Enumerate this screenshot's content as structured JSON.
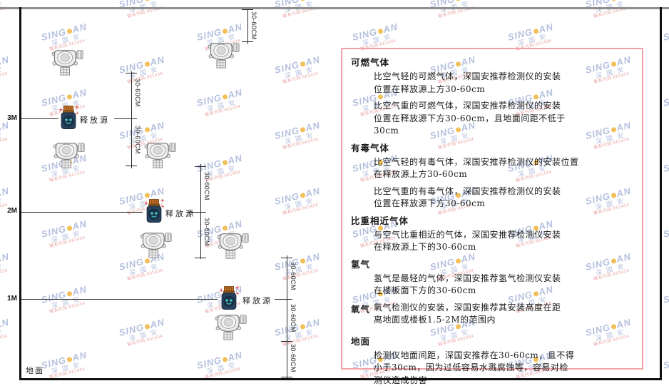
{
  "watermark": {
    "brand_left": "SING",
    "brand_right": "AN",
    "cjk": "深 国 安",
    "code": "联系代码:661434"
  },
  "diagram": {
    "ground_label": "地面",
    "release_label": "释放源",
    "dim_label": "30-60CM",
    "levels": [
      {
        "label": "3M"
      },
      {
        "label": "2M"
      },
      {
        "label": "1M"
      }
    ]
  },
  "panel": {
    "border_color": "#f2a2a6",
    "sections": [
      {
        "heading": "可燃气体",
        "paras": [
          {
            "lines": [
              "比空气轻的可燃气体，深国安推荐检测仪的安装",
              "位置在释放源上方30-60cm"
            ]
          },
          {
            "lines": [
              "比空气重的可燃气体，深国安推荐检测仪的安装",
              "位置在释放源下方30-60cm，且地面间距不低于",
              "30cm"
            ]
          }
        ]
      },
      {
        "heading": "有毒气体",
        "paras": [
          {
            "lines": [
              "比空气轻的有毒气体，深国安推荐检测仪的安装位置",
              "在释放源上方30-60cm"
            ]
          },
          {
            "lines": [
              "比空气重的有毒气体，深国安推荐检测仪的安装",
              "位置在释放源下方30-60cm"
            ]
          }
        ]
      },
      {
        "heading": "比重相近气体",
        "paras": [
          {
            "lines": [
              "与空气比重相近的气体，深国安推荐检测仪安装",
              "在释放源上下的30-60cm"
            ]
          }
        ]
      },
      {
        "heading": "氢气",
        "paras": [
          {
            "lines": [
              "氢气是最轻的气体，深国安推荐氢气检测仪安装",
              "在楼板面下方的30-60cm"
            ]
          }
        ]
      },
      {
        "heading": "氧气",
        "paras": [
          {
            "lines": [
              "氧气检测仪的安装，深国安推荐其安装高度在距",
              "离地面或楼板1.5-2M的范围内"
            ]
          }
        ]
      },
      {
        "heading": "地面",
        "paras": [
          {
            "lines": [
              "检测仪地面间距，深国安推荐在30-60cm，且不得",
              "小于30cm，因为过低容易水溅腐蚀等，容易对检",
              "测仪造成伤害"
            ]
          }
        ]
      }
    ]
  }
}
